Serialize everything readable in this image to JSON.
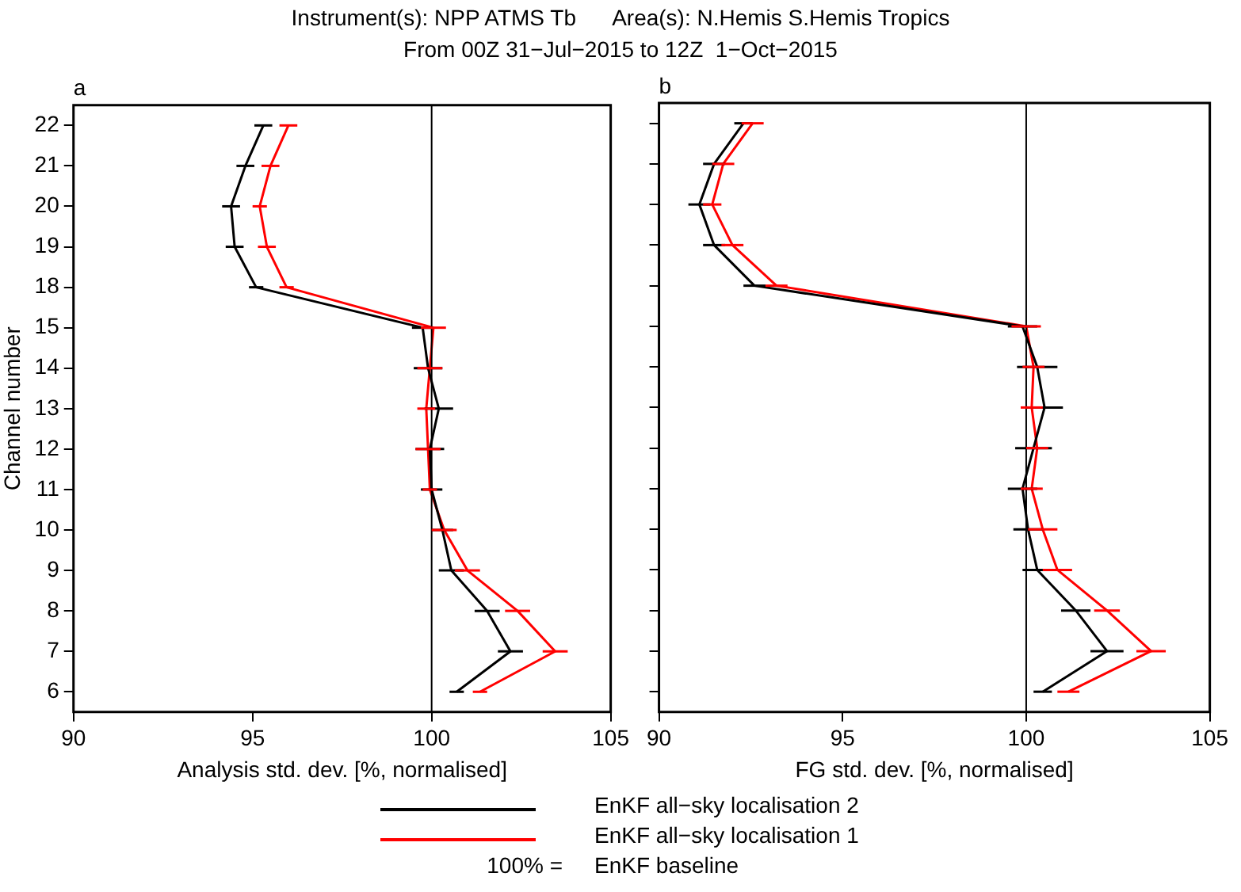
{
  "chart_data": [
    {
      "type": "line",
      "title": "Instrument(s): NPP ATMS Tb      Area(s): N.Hemis S.Hemis Tropics",
      "subtitle": "From 00Z 31−Jul−2015 to 12Z  1−Oct−2015",
      "orientation": "horizontal",
      "xlabel": "Analysis std. dev. [%, normalised]",
      "ylabel": "Channel number",
      "categories": [
        "22",
        "21",
        "20",
        "19",
        "18",
        "15",
        "14",
        "13",
        "12",
        "11",
        "10",
        "9",
        "8",
        "7",
        "6"
      ],
      "xlim": [
        90,
        105
      ],
      "xticks": [
        90,
        95,
        100,
        105
      ],
      "grid": false,
      "legend": "bottom",
      "marker": "none",
      "line_style": "solid",
      "ref_lines": [
        {
          "axis": "x",
          "value": 100,
          "color": "#000000"
        }
      ],
      "annotations": [
        "a",
        "100% =",
        "EnKF baseline"
      ],
      "series": [
        {
          "name": "EnKF all−sky localisation 2",
          "color": "#000000",
          "values": [
            95.3,
            94.8,
            94.4,
            94.5,
            95.1,
            99.75,
            99.9,
            100.2,
            99.95,
            100.0,
            100.3,
            100.55,
            101.55,
            102.2,
            100.7
          ],
          "errors": [
            0.25,
            0.25,
            0.25,
            0.25,
            0.2,
            0.3,
            0.4,
            0.4,
            0.4,
            0.3,
            0.3,
            0.35,
            0.35,
            0.35,
            0.2
          ]
        },
        {
          "name": "EnKF all−sky localisation 1",
          "color": "#ff0000",
          "values": [
            96.0,
            95.5,
            95.2,
            95.4,
            95.95,
            100.05,
            99.95,
            99.85,
            99.9,
            99.95,
            100.35,
            101.0,
            102.4,
            103.45,
            101.35
          ],
          "errors": [
            0.25,
            0.25,
            0.2,
            0.25,
            0.2,
            0.35,
            0.35,
            0.25,
            0.35,
            0.2,
            0.35,
            0.35,
            0.35,
            0.35,
            0.2
          ]
        }
      ]
    },
    {
      "type": "line",
      "orientation": "horizontal",
      "xlabel": "FG std. dev. [%, normalised]",
      "categories": [
        "22",
        "21",
        "20",
        "19",
        "18",
        "15",
        "14",
        "13",
        "12",
        "11",
        "10",
        "9",
        "8",
        "7",
        "6"
      ],
      "xlim": [
        90,
        105
      ],
      "xticks": [
        90,
        95,
        100,
        105
      ],
      "grid": false,
      "tick_labels": "x",
      "marker": "none",
      "line_style": "solid",
      "ref_lines": [
        {
          "axis": "x",
          "value": 100,
          "color": "#000000"
        }
      ],
      "annotations": [
        "b"
      ],
      "series": [
        {
          "color": "#000000",
          "values": [
            92.3,
            91.5,
            91.1,
            91.5,
            92.6,
            99.9,
            100.3,
            100.5,
            100.2,
            99.9,
            100.05,
            100.3,
            101.35,
            102.2,
            100.45
          ],
          "errors": [
            0.25,
            0.3,
            0.3,
            0.3,
            0.3,
            0.4,
            0.55,
            0.5,
            0.5,
            0.4,
            0.4,
            0.4,
            0.4,
            0.45,
            0.25
          ]
        },
        {
          "color": "#ff0000",
          "values": [
            92.55,
            91.75,
            91.45,
            92.0,
            93.2,
            100.0,
            100.2,
            100.15,
            100.3,
            100.15,
            100.45,
            100.85,
            102.2,
            103.4,
            101.15
          ],
          "errors": [
            0.3,
            0.3,
            0.25,
            0.3,
            0.3,
            0.4,
            0.3,
            0.3,
            0.3,
            0.3,
            0.4,
            0.4,
            0.35,
            0.4,
            0.3
          ]
        }
      ]
    }
  ]
}
